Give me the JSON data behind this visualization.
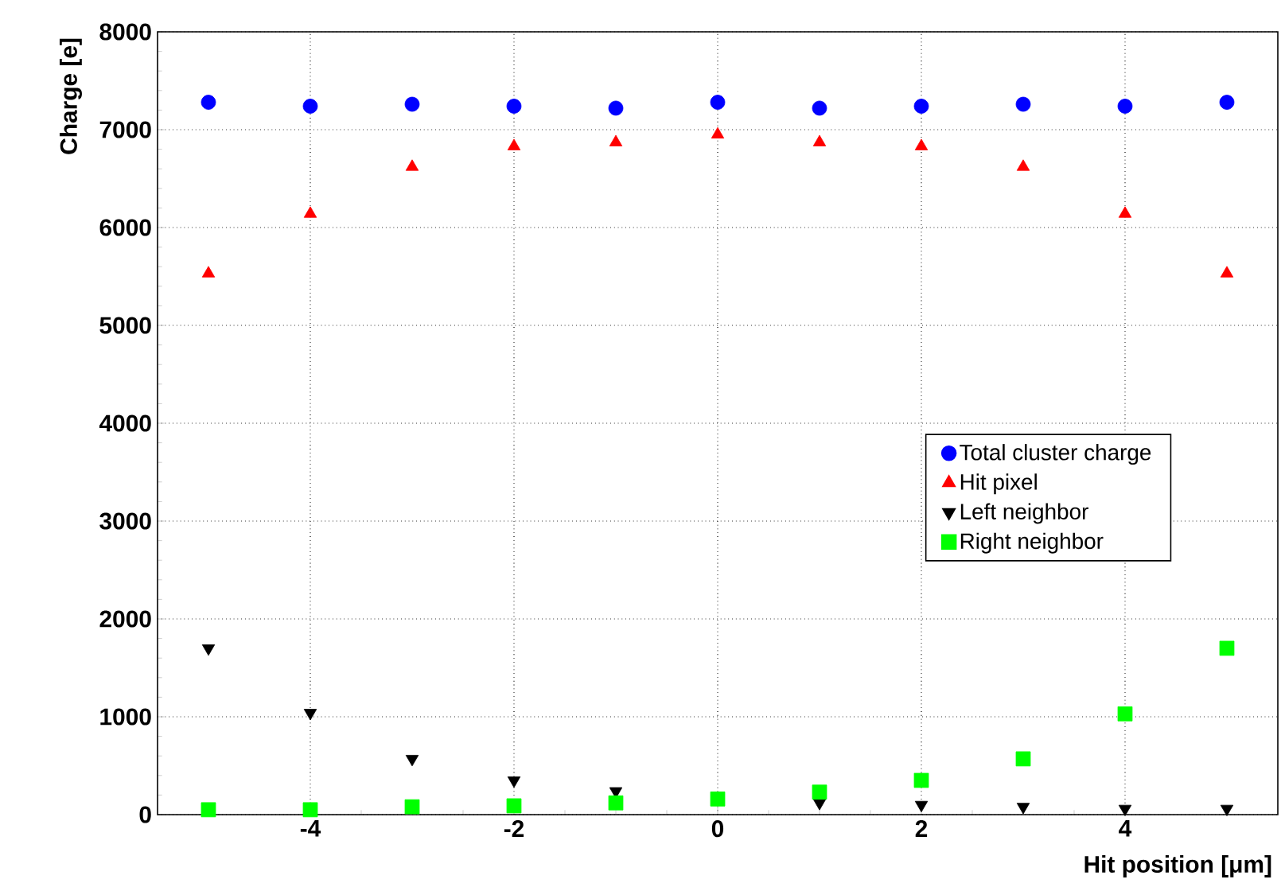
{
  "chart_data": {
    "type": "scatter",
    "xlabel": "Hit position [μm]",
    "ylabel": "Charge [e]",
    "x": [
      -5,
      -4,
      -3,
      -2,
      -1,
      0,
      1,
      2,
      3,
      4,
      5
    ],
    "series": [
      {
        "name": "Total cluster charge",
        "color": "#0000ff",
        "marker": "circle",
        "values": [
          7280,
          7240,
          7260,
          7240,
          7220,
          7280,
          7220,
          7240,
          7260,
          7240,
          7280
        ]
      },
      {
        "name": "Hit pixel",
        "color": "#ff0000",
        "marker": "triangle",
        "values": [
          5530,
          6140,
          6620,
          6830,
          6870,
          6950,
          6870,
          6830,
          6620,
          6140,
          5530
        ]
      },
      {
        "name": "Left neighbor",
        "color": "#000000",
        "marker": "triangle-down",
        "values": [
          1700,
          1040,
          570,
          350,
          240,
          null,
          120,
          100,
          80,
          60,
          60
        ]
      },
      {
        "name": "Right neighbor",
        "color": "#00ff00",
        "marker": "square",
        "values": [
          50,
          50,
          80,
          90,
          120,
          160,
          230,
          350,
          570,
          1030,
          1700
        ]
      }
    ],
    "xlim": [
      -5.5,
      5.5
    ],
    "ylim": [
      0,
      8000
    ],
    "xticks": [
      -4,
      -2,
      0,
      2,
      4
    ],
    "yticks": [
      0,
      1000,
      2000,
      3000,
      4000,
      5000,
      6000,
      7000,
      8000
    ],
    "grid": true,
    "legend": "right"
  }
}
